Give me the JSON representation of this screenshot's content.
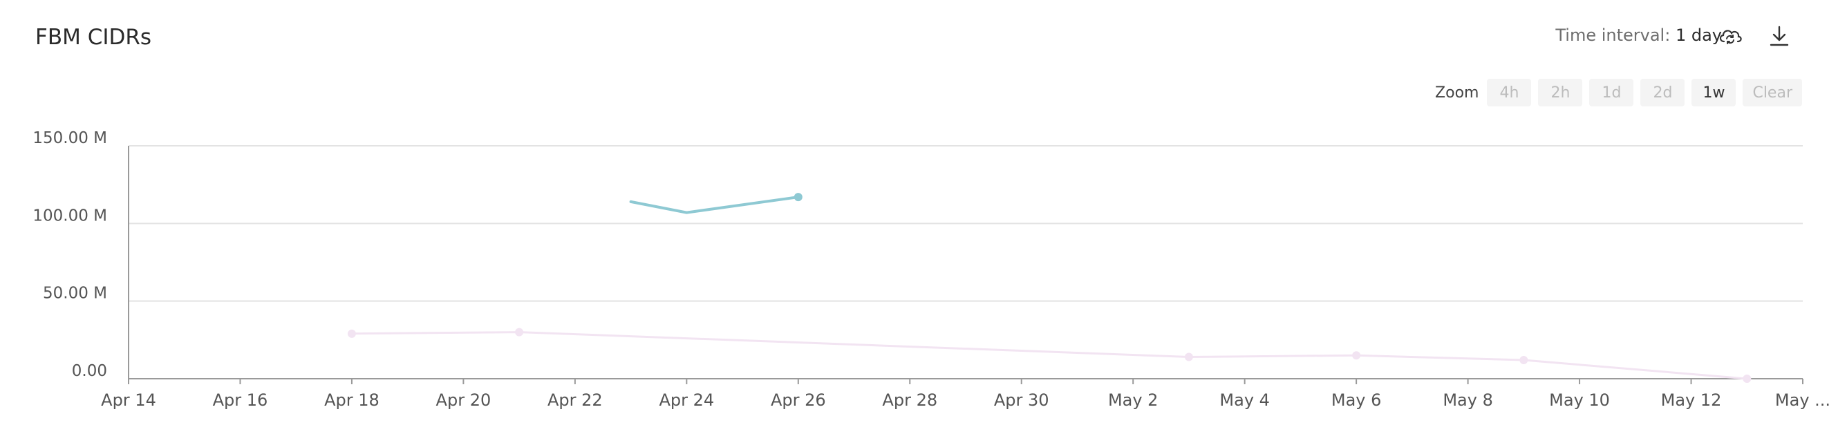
{
  "header": {
    "title": "FBM CIDRs",
    "interval_label": "Time interval:",
    "interval_value": "1 day",
    "icons": [
      "cloud-sync-icon",
      "download-icon"
    ]
  },
  "zoom": {
    "label": "Zoom",
    "options": [
      "4h",
      "2h",
      "1d",
      "2d",
      "1w",
      "Clear"
    ],
    "active": "1w"
  },
  "chart_data": {
    "type": "line",
    "title": "FBM CIDRs",
    "y_ticks": [
      "0.00",
      "50.00 M",
      "100.00 M",
      "150.00 M"
    ],
    "ylim": [
      0,
      150000000
    ],
    "x_ticks": [
      "Apr 14",
      "Apr 16",
      "Apr 18",
      "Apr 20",
      "Apr 22",
      "Apr 24",
      "Apr 26",
      "Apr 28",
      "Apr 30",
      "May 2",
      "May 4",
      "May 6",
      "May 8",
      "May 10",
      "May 12",
      "May ..."
    ],
    "xlim": [
      "2024-04-14",
      "2024-05-14"
    ],
    "grid": true,
    "series": [
      {
        "color": "#8ec9d3",
        "points": [
          {
            "x": "2024-04-23",
            "y": 114000000
          },
          {
            "x": "2024-04-24",
            "y": 107000000
          },
          {
            "x": "2024-04-26",
            "y": 117000000
          }
        ]
      },
      {
        "color": "#f2e4f2",
        "points": [
          {
            "x": "2024-04-18",
            "y": 29000000
          },
          {
            "x": "2024-04-21",
            "y": 30000000
          },
          {
            "x": "2024-05-03",
            "y": 14000000
          },
          {
            "x": "2024-05-06",
            "y": 15000000
          },
          {
            "x": "2024-05-09",
            "y": 12000000
          },
          {
            "x": "2024-05-13",
            "y": 0
          }
        ]
      }
    ]
  }
}
